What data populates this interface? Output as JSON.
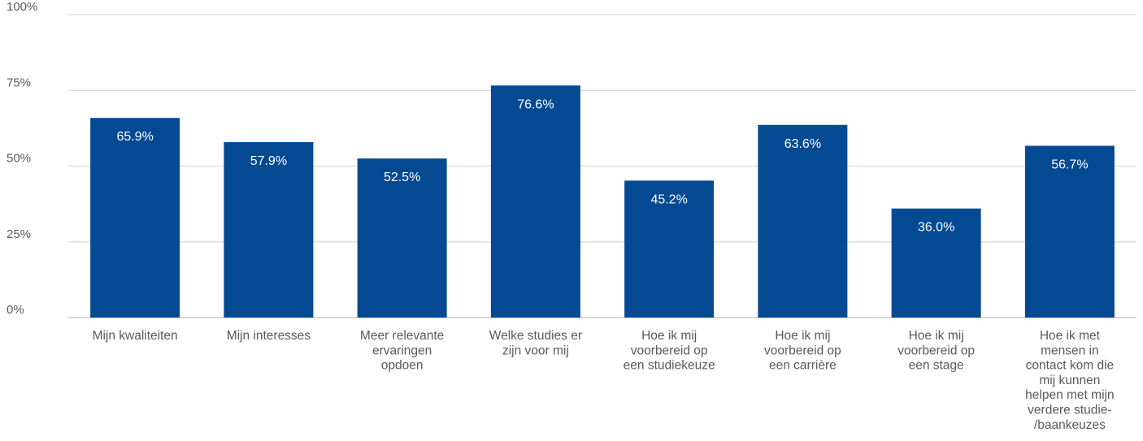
{
  "chart_data": {
    "type": "bar",
    "categories": [
      [
        "Mijn kwaliteiten"
      ],
      [
        "Mijn interesses"
      ],
      [
        "Meer relevante",
        "ervaringen",
        "opdoen"
      ],
      [
        "Welke studies er",
        "zijn voor mij"
      ],
      [
        "Hoe ik mij",
        "voorbereid op",
        "een studiekeuze"
      ],
      [
        "Hoe ik mij",
        "voorbereid op",
        "een carrière"
      ],
      [
        "Hoe ik mij",
        "voorbereid op",
        "een stage"
      ],
      [
        "Hoe ik met",
        "mensen in",
        "contact kom die",
        "mij kunnen",
        "helpen met mijn",
        "verdere studie-",
        "/baankeuzes"
      ]
    ],
    "values": [
      65.9,
      57.9,
      52.5,
      76.6,
      45.2,
      63.6,
      36.0,
      56.7
    ],
    "data_labels": [
      "65.9%",
      "57.9%",
      "52.5%",
      "76.6%",
      "45.2%",
      "63.6%",
      "36.0%",
      "56.7%"
    ],
    "y_ticks": [
      {
        "value": 0,
        "label": "0%"
      },
      {
        "value": 25,
        "label": "25%"
      },
      {
        "value": 50,
        "label": "50%"
      },
      {
        "value": 75,
        "label": "75%"
      },
      {
        "value": 100,
        "label": "100%"
      }
    ],
    "ylim": [
      0,
      100
    ],
    "title": "",
    "xlabel": "",
    "ylabel": "",
    "grid": true,
    "legend": "none",
    "colors": {
      "bar": "#044A93",
      "grid": "#D9D9D9",
      "axis": "#BFBFBF",
      "text": "#595959",
      "data_label": "#FFFFFF"
    }
  }
}
